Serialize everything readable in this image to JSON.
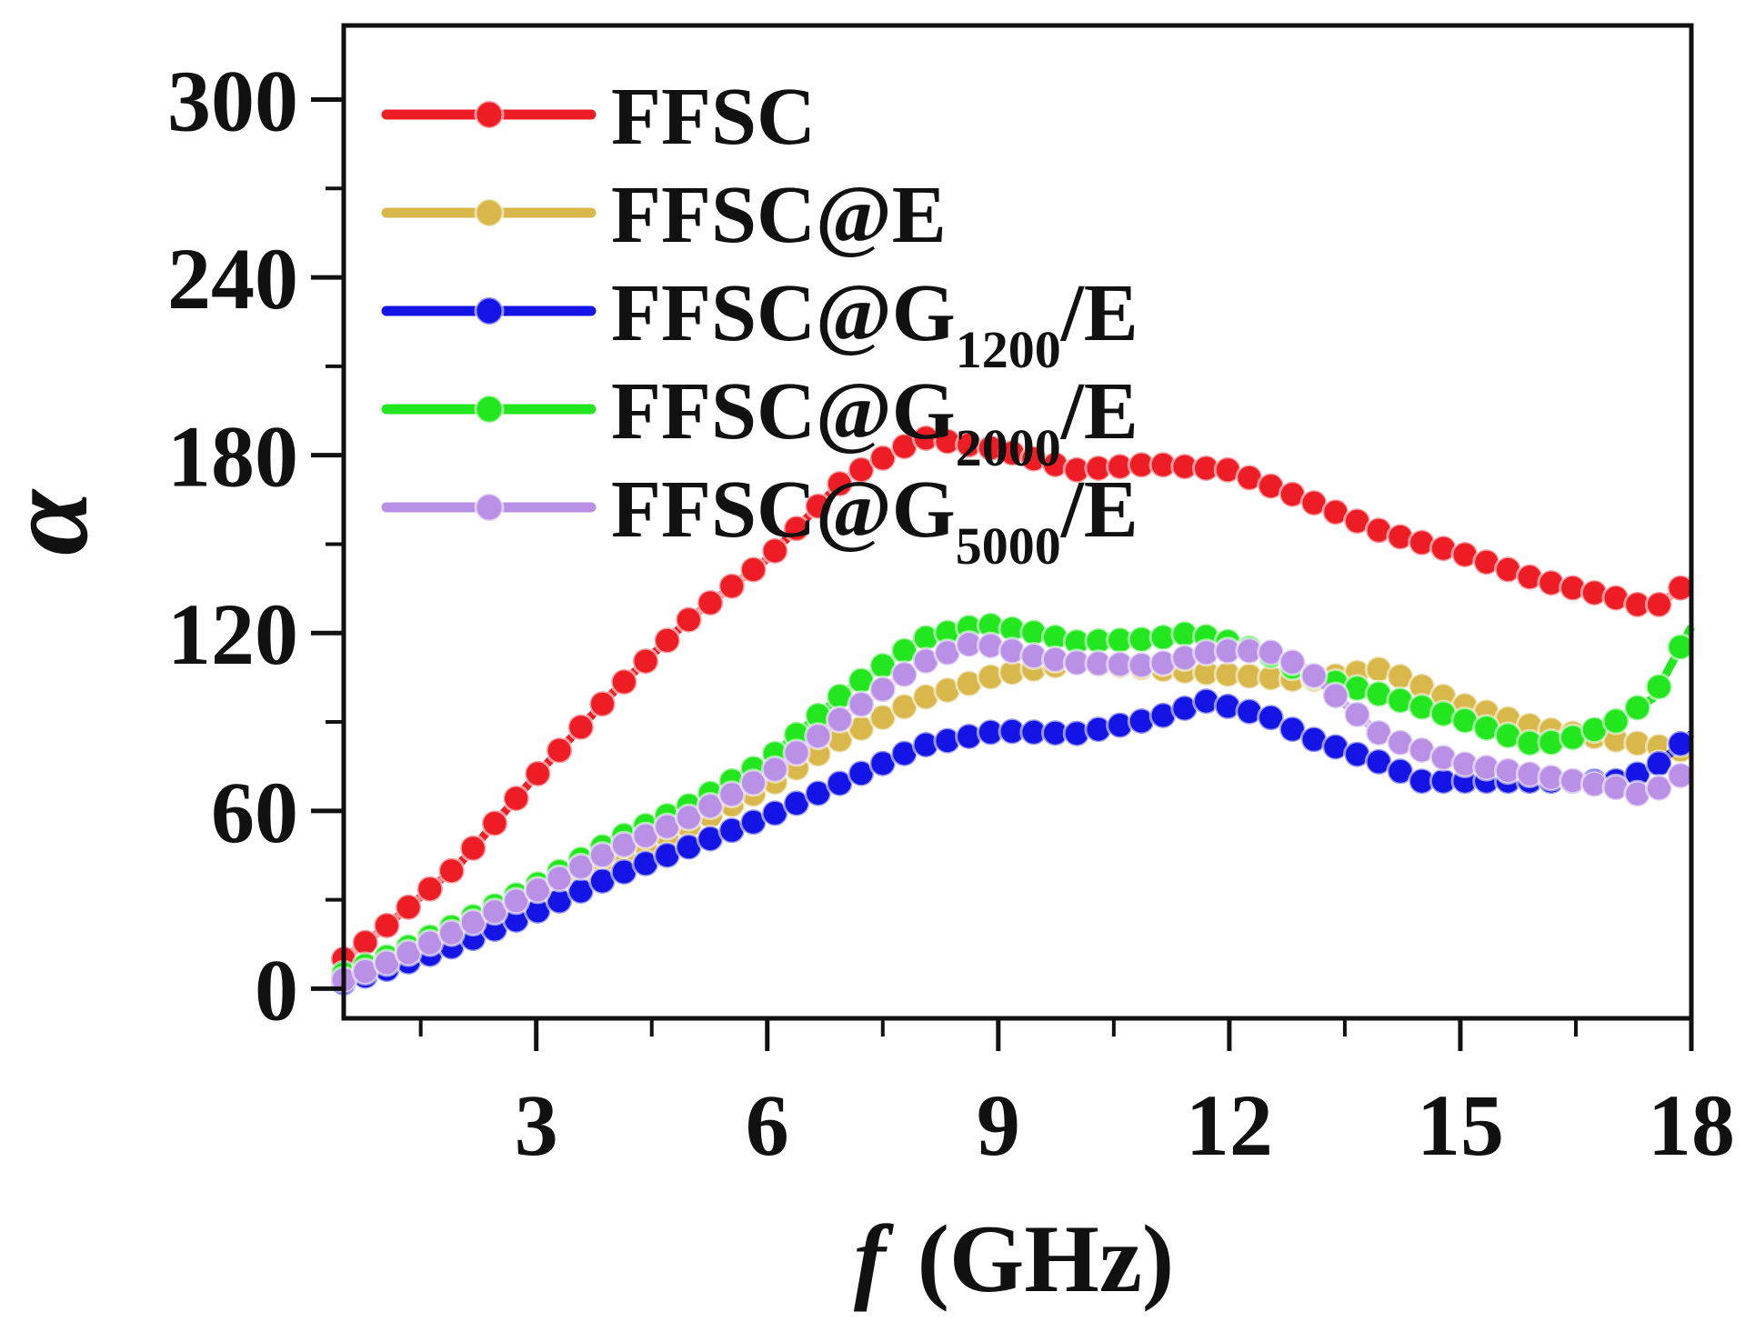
{
  "chart_data": {
    "type": "line",
    "title": "",
    "xlabel": "f (GHz)",
    "xlabel_symbol": "f",
    "xlabel_unit": "(GHz)",
    "ylabel": "α",
    "xlim": [
      0.5,
      18
    ],
    "ylim": [
      -10,
      325
    ],
    "xticks": [
      3,
      6,
      9,
      12,
      15,
      18
    ],
    "yticks": [
      0,
      60,
      120,
      180,
      240,
      300
    ],
    "x_minor_step": 1.5,
    "y_minor_step": 30,
    "grid": false,
    "legend_position": "top-left",
    "marker": "circle",
    "series": [
      {
        "name": "FFSC",
        "label_base": "FFSC@",
        "label_main": "FFSC",
        "label_sub": "",
        "label_tail": "",
        "color": "#ee1c24",
        "points": [
          [
            0.5,
            10
          ],
          [
            1,
            20
          ],
          [
            2,
            42
          ],
          [
            3,
            72
          ],
          [
            4,
            100
          ],
          [
            5,
            125
          ],
          [
            6,
            145
          ],
          [
            7,
            172
          ],
          [
            8,
            186
          ],
          [
            9,
            182
          ],
          [
            10,
            175
          ],
          [
            11,
            177
          ],
          [
            12,
            175
          ],
          [
            13,
            165
          ],
          [
            14,
            154
          ],
          [
            15,
            147
          ],
          [
            16,
            138
          ],
          [
            17,
            132
          ],
          [
            17.5,
            128
          ],
          [
            18,
            138
          ]
        ]
      },
      {
        "name": "FFSC@E",
        "label_main": "FFSC@E",
        "label_sub": "",
        "label_tail": "",
        "color": "#d8b84a",
        "points": [
          [
            0.5,
            3
          ],
          [
            1,
            7
          ],
          [
            2,
            18
          ],
          [
            3,
            30
          ],
          [
            4,
            43
          ],
          [
            5,
            55
          ],
          [
            6,
            68
          ],
          [
            7,
            85
          ],
          [
            8,
            98
          ],
          [
            9,
            106
          ],
          [
            10,
            110
          ],
          [
            11,
            108
          ],
          [
            12,
            106
          ],
          [
            13,
            104
          ],
          [
            14,
            108
          ],
          [
            15,
            96
          ],
          [
            16,
            88
          ],
          [
            17,
            84
          ],
          [
            18,
            80
          ]
        ]
      },
      {
        "name": "FFSC@G1200/E",
        "label_main": "FFSC@G",
        "label_sub": "1200",
        "label_tail": "/E",
        "color": "#1414e6",
        "points": [
          [
            0.5,
            2
          ],
          [
            1,
            6
          ],
          [
            2,
            15
          ],
          [
            3,
            26
          ],
          [
            4,
            38
          ],
          [
            5,
            48
          ],
          [
            6,
            58
          ],
          [
            7,
            70
          ],
          [
            8,
            82
          ],
          [
            9,
            87
          ],
          [
            10,
            86
          ],
          [
            11,
            91
          ],
          [
            11.7,
            97
          ],
          [
            12.5,
            92
          ],
          [
            13,
            85
          ],
          [
            14,
            76
          ],
          [
            14.5,
            70
          ],
          [
            15,
            70
          ],
          [
            16,
            70
          ],
          [
            17,
            70
          ],
          [
            17.5,
            74
          ],
          [
            18,
            86
          ]
        ]
      },
      {
        "name": "FFSC@G2000/E",
        "label_main": "FFSC@G",
        "label_sub": "2000",
        "label_tail": "/E",
        "color": "#22e61e",
        "points": [
          [
            0.5,
            5
          ],
          [
            1,
            10
          ],
          [
            2,
            22
          ],
          [
            3,
            35
          ],
          [
            4,
            50
          ],
          [
            5,
            62
          ],
          [
            6,
            77
          ],
          [
            7,
            100
          ],
          [
            8,
            118
          ],
          [
            8.8,
            123
          ],
          [
            9.5,
            120
          ],
          [
            10,
            117
          ],
          [
            11,
            118
          ],
          [
            11.5,
            120
          ],
          [
            12,
            117
          ],
          [
            12.5,
            113
          ],
          [
            13,
            106
          ],
          [
            14,
            99
          ],
          [
            15,
            91
          ],
          [
            16,
            82
          ],
          [
            16.5,
            85
          ],
          [
            17,
            90
          ],
          [
            17.5,
            98
          ],
          [
            18,
            122
          ]
        ]
      },
      {
        "name": "FFSC@G5000/E",
        "label_main": "FFSC@G",
        "label_sub": "5000",
        "label_tail": "/E",
        "color": "#b890e6",
        "points": [
          [
            0.5,
            3
          ],
          [
            1,
            8
          ],
          [
            2,
            20
          ],
          [
            3,
            33
          ],
          [
            4,
            47
          ],
          [
            5,
            58
          ],
          [
            6,
            72
          ],
          [
            7,
            92
          ],
          [
            8,
            110
          ],
          [
            8.7,
            117
          ],
          [
            9.5,
            112
          ],
          [
            10,
            110
          ],
          [
            11,
            109
          ],
          [
            11.8,
            114
          ],
          [
            12.5,
            114
          ],
          [
            13,
            108
          ],
          [
            13.5,
            96
          ],
          [
            14,
            85
          ],
          [
            15,
            76
          ],
          [
            16,
            72
          ],
          [
            17,
            68
          ],
          [
            17.4,
            65
          ],
          [
            18,
            74
          ]
        ]
      }
    ]
  }
}
